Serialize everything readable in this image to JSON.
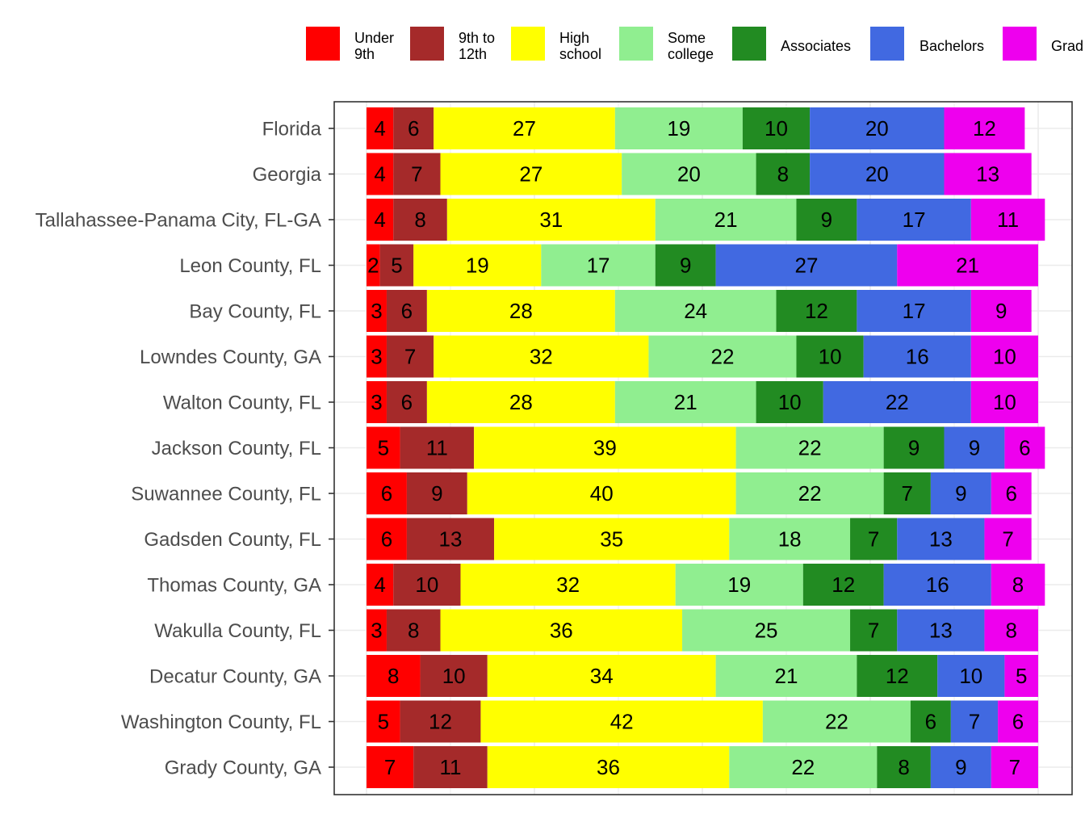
{
  "chart_data": {
    "type": "bar",
    "orientation": "horizontal",
    "stacked": true,
    "grid": true,
    "legend_position": "top",
    "xlim": [
      0,
      100
    ],
    "categories": [
      "Florida",
      "Georgia",
      "Tallahassee-Panama City, FL-GA",
      "Leon County, FL",
      "Bay County, FL",
      "Lowndes County, GA",
      "Walton County, FL",
      "Jackson County, FL",
      "Suwannee County, FL",
      "Gadsden County, FL",
      "Thomas County, GA",
      "Wakulla County, FL",
      "Decatur County, GA",
      "Washington County, FL",
      "Grady County, GA"
    ],
    "series": [
      {
        "name": "Under\n9th",
        "color": "#ff0000",
        "values": [
          4,
          4,
          4,
          2,
          3,
          3,
          3,
          5,
          6,
          6,
          4,
          3,
          8,
          5,
          7
        ]
      },
      {
        "name": "9th to\n12th",
        "color": "#a52a2a",
        "values": [
          6,
          7,
          8,
          5,
          6,
          7,
          6,
          11,
          9,
          13,
          10,
          8,
          10,
          12,
          11
        ]
      },
      {
        "name": "High\nschool",
        "color": "#ffff00",
        "values": [
          27,
          27,
          31,
          19,
          28,
          32,
          28,
          39,
          40,
          35,
          32,
          36,
          34,
          42,
          36
        ]
      },
      {
        "name": "Some\ncollege",
        "color": "#90ee90",
        "values": [
          19,
          20,
          21,
          17,
          24,
          22,
          21,
          22,
          22,
          18,
          19,
          25,
          21,
          22,
          22
        ]
      },
      {
        "name": "Associates",
        "color": "#228b22",
        "values": [
          10,
          8,
          9,
          9,
          12,
          10,
          10,
          9,
          7,
          7,
          12,
          7,
          12,
          6,
          8
        ]
      },
      {
        "name": "Bachelors",
        "color": "#4169e1",
        "values": [
          20,
          20,
          17,
          27,
          17,
          16,
          22,
          9,
          9,
          13,
          16,
          13,
          10,
          7,
          9
        ]
      },
      {
        "name": "Grad",
        "color": "#ee00ee",
        "values": [
          12,
          13,
          11,
          21,
          9,
          10,
          10,
          6,
          6,
          7,
          8,
          8,
          5,
          6,
          7
        ]
      }
    ]
  }
}
